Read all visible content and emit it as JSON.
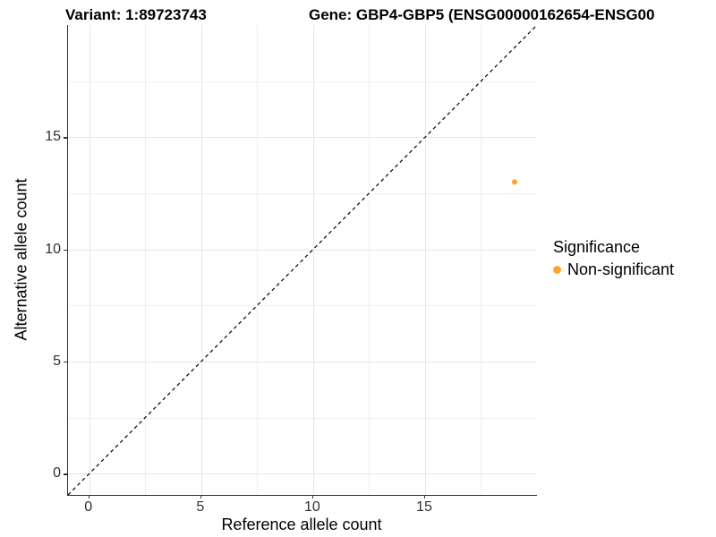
{
  "titles": {
    "variant": "Variant: 1:89723743",
    "gene": "Gene: GBP4-GBP5 (ENSG00000162654-ENSG00"
  },
  "legend": {
    "title": "Significance",
    "items": [
      {
        "label": "Non-significant",
        "color": "#FFA330"
      }
    ]
  },
  "chart_data": {
    "type": "scatter",
    "title_left": "Variant: 1:89723743",
    "title_right": "Gene: GBP4-GBP5 (ENSG00000162654-ENSG00",
    "xlabel": "Reference allele count",
    "ylabel": "Alternative allele count",
    "xlim": [
      -0.95,
      20.0
    ],
    "ylim": [
      -0.95,
      20.0
    ],
    "x_ticks": [
      0,
      5,
      10,
      15
    ],
    "y_ticks": [
      0,
      5,
      10,
      15
    ],
    "minor_gridlines": [
      2.5,
      7.5,
      12.5,
      17.5
    ],
    "grid": "major+minor on white background",
    "reference_line": {
      "type": "identity y=x",
      "style": "dashed",
      "color": "#000000"
    },
    "series": [
      {
        "name": "Non-significant",
        "color": "#FFA330",
        "points": [
          {
            "x": 19,
            "y": 13
          }
        ]
      }
    ],
    "legend_position": "right"
  }
}
